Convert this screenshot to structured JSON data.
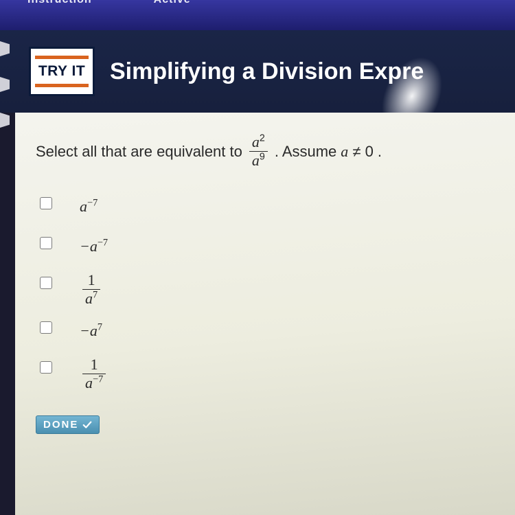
{
  "topStrip": {
    "left": "Instruction",
    "right": "Active"
  },
  "header": {
    "badge": "TRY IT",
    "title": "Simplifying a Division Expre"
  },
  "prompt": {
    "lead": "Select all that are equivalent to",
    "frac_num_base": "a",
    "frac_num_exp": "2",
    "frac_den_base": "a",
    "frac_den_exp": "9",
    "mid": ". Assume ",
    "cond_var": "a",
    "cond_rel": "≠",
    "cond_val": "0",
    "tail": "."
  },
  "options": [
    {
      "type": "power",
      "base": "a",
      "exp": "−7"
    },
    {
      "type": "power",
      "base": "−a",
      "exp": "−7"
    },
    {
      "type": "frac",
      "num": "1",
      "den_base": "a",
      "den_exp": "7"
    },
    {
      "type": "power",
      "base": "−a",
      "exp": "7"
    },
    {
      "type": "frac",
      "num": "1",
      "den_base": "a",
      "den_exp": "−7"
    }
  ],
  "doneLabel": "DONE",
  "colors": {
    "header_bg": "#17203d",
    "badge_border": "#0b1a3a",
    "badge_stripe": "#d9641f",
    "content_bg": "#f0f0e6",
    "done_bg": "#5fa7c7"
  }
}
